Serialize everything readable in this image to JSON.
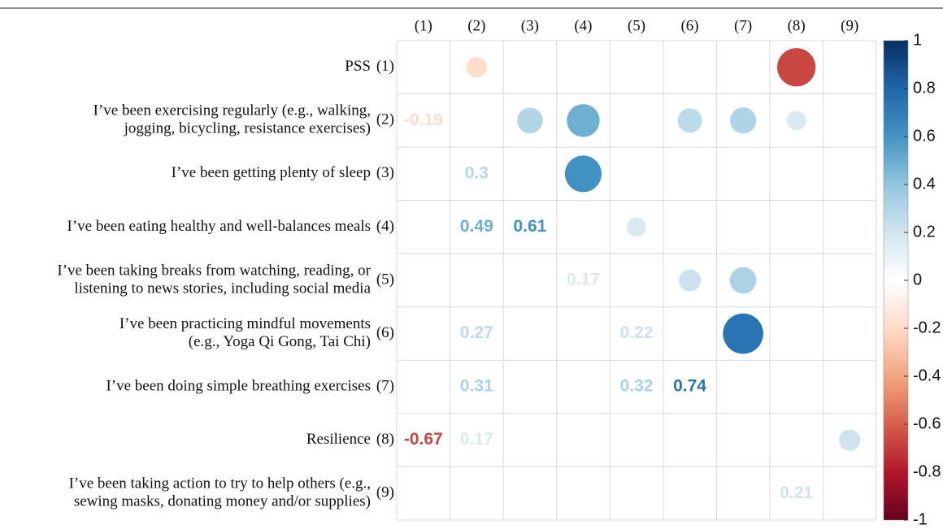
{
  "chart_data": {
    "type": "corrplot",
    "categories": [
      "(1)",
      "(2)",
      "(3)",
      "(4)",
      "(5)",
      "(6)",
      "(7)",
      "(8)",
      "(9)"
    ],
    "row_labels": [
      [
        "PSS"
      ],
      [
        "I’ve been exercising regularly (e.g., walking,",
        "jogging, bicycling, resistance exercises)"
      ],
      [
        "I’ve been getting plenty of sleep"
      ],
      [
        "I’ve been eating healthy and well-balances meals"
      ],
      [
        "I’ve been taking breaks from watching, reading, or",
        "listening to news stories, including social media"
      ],
      [
        "I’ve been practicing mindful movements",
        "(e.g., Yoga Qi Gong, Tai Chi)"
      ],
      [
        "I’ve been doing simple breathing exercises"
      ],
      [
        "Resilience"
      ],
      [
        "I’ve been taking action to try to help others (e.g.,",
        "sewing masks, donating money and/or supplies)"
      ]
    ],
    "matrix": [
      [
        null,
        -0.19,
        null,
        null,
        null,
        null,
        null,
        -0.67,
        null
      ],
      [
        -0.19,
        null,
        0.3,
        0.49,
        null,
        0.27,
        0.31,
        0.17,
        null
      ],
      [
        null,
        0.3,
        null,
        0.61,
        null,
        null,
        null,
        null,
        null
      ],
      [
        null,
        0.49,
        0.61,
        null,
        0.17,
        null,
        null,
        null,
        null
      ],
      [
        null,
        null,
        null,
        0.17,
        null,
        0.22,
        0.32,
        null,
        null
      ],
      [
        null,
        0.27,
        null,
        null,
        0.22,
        null,
        0.74,
        null,
        null
      ],
      [
        null,
        0.31,
        null,
        null,
        0.32,
        0.74,
        null,
        null,
        null
      ],
      [
        -0.67,
        0.17,
        null,
        null,
        null,
        null,
        null,
        null,
        0.21
      ],
      [
        null,
        null,
        null,
        null,
        null,
        null,
        null,
        0.21,
        null
      ]
    ],
    "clim": [
      -1,
      1
    ],
    "cticks": [
      1,
      0.8,
      0.6,
      0.4,
      0.2,
      0,
      -0.2,
      -0.4,
      -0.6,
      -0.8,
      -1
    ],
    "colorscale": [
      "#67001F",
      "#B2182B",
      "#D6604D",
      "#F4A582",
      "#FDDBC7",
      "#FFFFFF",
      "#D1E5F0",
      "#92C5DE",
      "#4393C3",
      "#2166AC",
      "#053061"
    ],
    "grid": true
  }
}
